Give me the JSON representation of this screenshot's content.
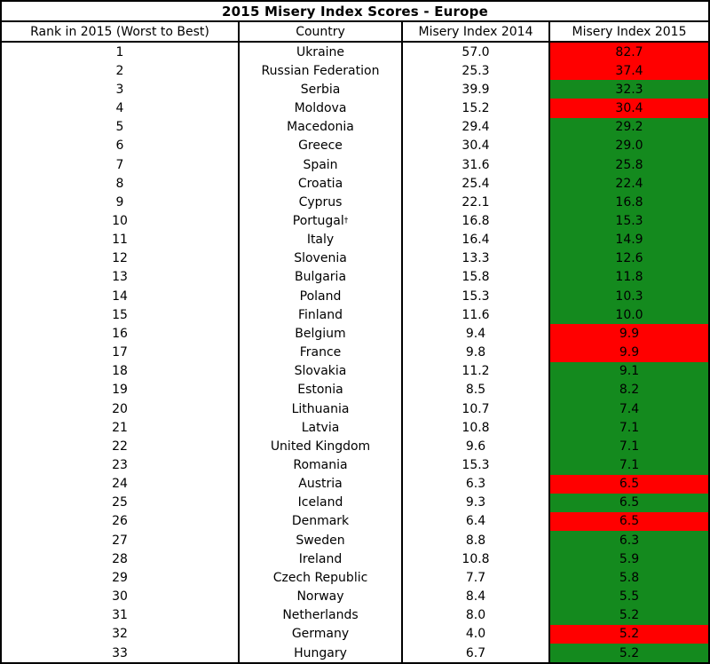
{
  "title": "2015 Misery Index Scores - Europe",
  "columns": {
    "rank": "Rank in 2015 (Worst to Best)",
    "country": "Country",
    "mi2014": "Misery Index 2014",
    "mi2015": "Misery Index 2015"
  },
  "colors": {
    "worse": "#FF0000",
    "better": "#148A1E",
    "border": "#000000",
    "text": "#000000"
  },
  "rows": [
    {
      "rank": "1",
      "country": "Ukraine",
      "sup": "",
      "mi2014": "57.0",
      "mi2015": "82.7",
      "trend": "worse"
    },
    {
      "rank": "2",
      "country": "Russian Federation",
      "sup": "",
      "mi2014": "25.3",
      "mi2015": "37.4",
      "trend": "worse"
    },
    {
      "rank": "3",
      "country": "Serbia",
      "sup": "",
      "mi2014": "39.9",
      "mi2015": "32.3",
      "trend": "better"
    },
    {
      "rank": "4",
      "country": "Moldova",
      "sup": "",
      "mi2014": "15.2",
      "mi2015": "30.4",
      "trend": "worse"
    },
    {
      "rank": "5",
      "country": "Macedonia",
      "sup": "",
      "mi2014": "29.4",
      "mi2015": "29.2",
      "trend": "better"
    },
    {
      "rank": "6",
      "country": "Greece",
      "sup": "",
      "mi2014": "30.4",
      "mi2015": "29.0",
      "trend": "better"
    },
    {
      "rank": "7",
      "country": "Spain",
      "sup": "",
      "mi2014": "31.6",
      "mi2015": "25.8",
      "trend": "better"
    },
    {
      "rank": "8",
      "country": "Croatia",
      "sup": "",
      "mi2014": "25.4",
      "mi2015": "22.4",
      "trend": "better"
    },
    {
      "rank": "9",
      "country": "Cyprus",
      "sup": "",
      "mi2014": "22.1",
      "mi2015": "16.8",
      "trend": "better"
    },
    {
      "rank": "10",
      "country": "Portugal",
      "sup": "†",
      "mi2014": "16.8",
      "mi2015": "15.3",
      "trend": "better"
    },
    {
      "rank": "11",
      "country": "Italy",
      "sup": "",
      "mi2014": "16.4",
      "mi2015": "14.9",
      "trend": "better"
    },
    {
      "rank": "12",
      "country": "Slovenia",
      "sup": "",
      "mi2014": "13.3",
      "mi2015": "12.6",
      "trend": "better"
    },
    {
      "rank": "13",
      "country": "Bulgaria",
      "sup": "",
      "mi2014": "15.8",
      "mi2015": "11.8",
      "trend": "better"
    },
    {
      "rank": "14",
      "country": "Poland",
      "sup": "",
      "mi2014": "15.3",
      "mi2015": "10.3",
      "trend": "better"
    },
    {
      "rank": "15",
      "country": "Finland",
      "sup": "",
      "mi2014": "11.6",
      "mi2015": "10.0",
      "trend": "better"
    },
    {
      "rank": "16",
      "country": "Belgium",
      "sup": "",
      "mi2014": "9.4",
      "mi2015": "9.9",
      "trend": "worse"
    },
    {
      "rank": "17",
      "country": "France",
      "sup": "",
      "mi2014": "9.8",
      "mi2015": "9.9",
      "trend": "worse"
    },
    {
      "rank": "18",
      "country": "Slovakia",
      "sup": "",
      "mi2014": "11.2",
      "mi2015": "9.1",
      "trend": "better"
    },
    {
      "rank": "19",
      "country": "Estonia",
      "sup": "",
      "mi2014": "8.5",
      "mi2015": "8.2",
      "trend": "better"
    },
    {
      "rank": "20",
      "country": "Lithuania",
      "sup": "",
      "mi2014": "10.7",
      "mi2015": "7.4",
      "trend": "better"
    },
    {
      "rank": "21",
      "country": "Latvia",
      "sup": "",
      "mi2014": "10.8",
      "mi2015": "7.1",
      "trend": "better"
    },
    {
      "rank": "22",
      "country": "United Kingdom",
      "sup": "",
      "mi2014": "9.6",
      "mi2015": "7.1",
      "trend": "better"
    },
    {
      "rank": "23",
      "country": "Romania",
      "sup": "",
      "mi2014": "15.3",
      "mi2015": "7.1",
      "trend": "better"
    },
    {
      "rank": "24",
      "country": "Austria",
      "sup": "",
      "mi2014": "6.3",
      "mi2015": "6.5",
      "trend": "worse"
    },
    {
      "rank": "25",
      "country": "Iceland",
      "sup": "",
      "mi2014": "9.3",
      "mi2015": "6.5",
      "trend": "better"
    },
    {
      "rank": "26",
      "country": "Denmark",
      "sup": "",
      "mi2014": "6.4",
      "mi2015": "6.5",
      "trend": "worse"
    },
    {
      "rank": "27",
      "country": "Sweden",
      "sup": "",
      "mi2014": "8.8",
      "mi2015": "6.3",
      "trend": "better"
    },
    {
      "rank": "28",
      "country": "Ireland",
      "sup": "",
      "mi2014": "10.8",
      "mi2015": "5.9",
      "trend": "better"
    },
    {
      "rank": "29",
      "country": "Czech Republic",
      "sup": "",
      "mi2014": "7.7",
      "mi2015": "5.8",
      "trend": "better"
    },
    {
      "rank": "30",
      "country": "Norway",
      "sup": "",
      "mi2014": "8.4",
      "mi2015": "5.5",
      "trend": "better"
    },
    {
      "rank": "31",
      "country": "Netherlands",
      "sup": "",
      "mi2014": "8.0",
      "mi2015": "5.2",
      "trend": "better"
    },
    {
      "rank": "32",
      "country": "Germany",
      "sup": "",
      "mi2014": "4.0",
      "mi2015": "5.2",
      "trend": "worse"
    },
    {
      "rank": "33",
      "country": "Hungary",
      "sup": "",
      "mi2014": "6.7",
      "mi2015": "5.2",
      "trend": "better"
    }
  ]
}
